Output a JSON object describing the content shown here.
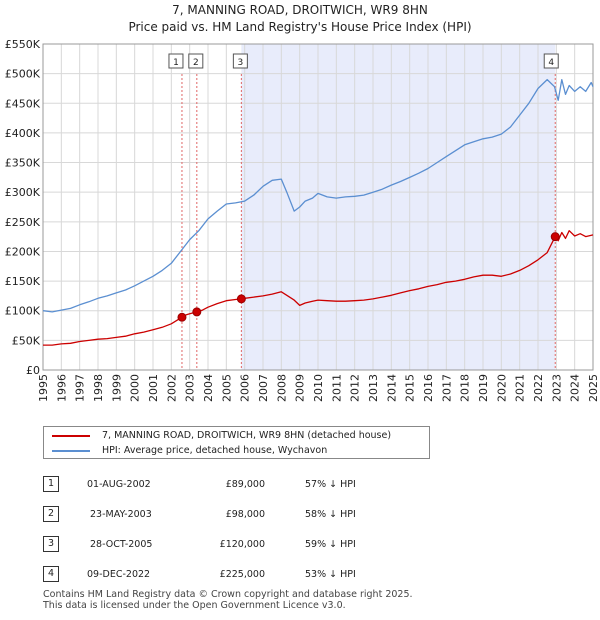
{
  "title_line1": "7, MANNING ROAD, DROITWICH, WR9 8HN",
  "title_line2": "Price paid vs. HM Land Registry's House Price Index (HPI)",
  "chart_data": {
    "type": "line",
    "title": "7, MANNING ROAD, DROITWICH, WR9 8HN — Price paid vs. HM Land Registry's House Price Index (HPI)",
    "xlabel": "",
    "ylabel": "",
    "xlim": [
      1995,
      2025
    ],
    "ylim": [
      0,
      550000
    ],
    "x_ticks": [
      "1995",
      "1996",
      "1997",
      "1998",
      "1999",
      "2000",
      "2001",
      "2002",
      "2003",
      "2004",
      "2005",
      "2006",
      "2007",
      "2008",
      "2009",
      "2010",
      "2011",
      "2012",
      "2013",
      "2014",
      "2015",
      "2016",
      "2017",
      "2018",
      "2019",
      "2020",
      "2021",
      "2022",
      "2023",
      "2024",
      "2025"
    ],
    "y_ticks": [
      {
        "value": 0,
        "label": "£0"
      },
      {
        "value": 50000,
        "label": "£50K"
      },
      {
        "value": 100000,
        "label": "£100K"
      },
      {
        "value": 150000,
        "label": "£150K"
      },
      {
        "value": 200000,
        "label": "£200K"
      },
      {
        "value": 250000,
        "label": "£250K"
      },
      {
        "value": 300000,
        "label": "£300K"
      },
      {
        "value": 350000,
        "label": "£350K"
      },
      {
        "value": 400000,
        "label": "£400K"
      },
      {
        "value": 450000,
        "label": "£450K"
      },
      {
        "value": 500000,
        "label": "£500K"
      },
      {
        "value": 550000,
        "label": "£550K"
      }
    ],
    "grid": true,
    "shaded_region": {
      "from": 2005.82,
      "to": 2022.94,
      "color": "#e8ecfb"
    },
    "series": [
      {
        "name": "7, MANNING ROAD, DROITWICH, WR9 8HN (detached house)",
        "color": "#cc0000",
        "x": [
          1995,
          1995.5,
          1996,
          1996.5,
          1997,
          1997.5,
          1998,
          1998.5,
          1999,
          1999.5,
          2000,
          2000.5,
          2001,
          2001.5,
          2002,
          2002.58,
          2002.8,
          2003,
          2003.39,
          2003.7,
          2004,
          2004.5,
          2005,
          2005.5,
          2005.82,
          2006,
          2006.5,
          2007,
          2007.5,
          2008,
          2008.3,
          2008.7,
          2009,
          2009.3,
          2009.7,
          2010,
          2010.5,
          2011,
          2011.5,
          2012,
          2012.5,
          2013,
          2013.5,
          2014,
          2014.5,
          2015,
          2015.5,
          2016,
          2016.5,
          2017,
          2017.5,
          2018,
          2018.5,
          2019,
          2019.5,
          2020,
          2020.5,
          2021,
          2021.5,
          2022,
          2022.5,
          2022.94,
          2023.1,
          2023.3,
          2023.5,
          2023.7,
          2024,
          2024.3,
          2024.6,
          2025
        ],
        "values": [
          42000,
          42000,
          44000,
          45000,
          48000,
          50000,
          52000,
          53000,
          55000,
          57000,
          61000,
          64000,
          68000,
          72000,
          78000,
          89000,
          93000,
          95000,
          98000,
          101000,
          106000,
          112000,
          117000,
          119000,
          120000,
          121000,
          123000,
          125000,
          128000,
          132000,
          126000,
          118000,
          109000,
          113000,
          116000,
          118000,
          117000,
          116000,
          116000,
          117000,
          118000,
          120000,
          123000,
          126000,
          130000,
          134000,
          137000,
          141000,
          144000,
          148000,
          150000,
          153000,
          157000,
          160000,
          160000,
          158000,
          162000,
          168000,
          176000,
          186000,
          198000,
          225000,
          218000,
          232000,
          222000,
          235000,
          226000,
          230000,
          225000,
          228000
        ]
      },
      {
        "name": "HPI: Average price, detached house, Wychavon",
        "color": "#5b8fd1",
        "x": [
          1995,
          1995.5,
          1996,
          1996.5,
          1997,
          1997.5,
          1998,
          1998.5,
          1999,
          1999.5,
          2000,
          2000.5,
          2001,
          2001.5,
          2002,
          2002.5,
          2003,
          2003.5,
          2004,
          2004.5,
          2005,
          2005.5,
          2006,
          2006.5,
          2007,
          2007.5,
          2008,
          2008.3,
          2008.7,
          2009,
          2009.3,
          2009.7,
          2010,
          2010.5,
          2011,
          2011.5,
          2012,
          2012.5,
          2013,
          2013.5,
          2014,
          2014.5,
          2015,
          2015.5,
          2016,
          2016.5,
          2017,
          2017.5,
          2018,
          2018.5,
          2019,
          2019.5,
          2020,
          2020.5,
          2021,
          2021.5,
          2022,
          2022.5,
          2022.9,
          2023.1,
          2023.3,
          2023.5,
          2023.7,
          2024,
          2024.3,
          2024.6,
          2024.9,
          2025
        ],
        "values": [
          100000,
          98000,
          101000,
          104000,
          110000,
          115000,
          121000,
          125000,
          130000,
          135000,
          142000,
          150000,
          158000,
          168000,
          180000,
          200000,
          220000,
          235000,
          255000,
          268000,
          280000,
          282000,
          285000,
          295000,
          310000,
          320000,
          322000,
          300000,
          268000,
          275000,
          285000,
          290000,
          298000,
          292000,
          290000,
          292000,
          293000,
          295000,
          300000,
          305000,
          312000,
          318000,
          325000,
          332000,
          340000,
          350000,
          360000,
          370000,
          380000,
          385000,
          390000,
          393000,
          398000,
          410000,
          430000,
          450000,
          475000,
          490000,
          478000,
          455000,
          490000,
          465000,
          480000,
          470000,
          478000,
          470000,
          485000,
          478000
        ]
      }
    ],
    "sales": [
      {
        "id": "1",
        "year": 2002.58,
        "price": 89000
      },
      {
        "id": "2",
        "year": 2003.39,
        "price": 98000
      },
      {
        "id": "3",
        "year": 2005.82,
        "price": 120000
      },
      {
        "id": "4",
        "year": 2022.94,
        "price": 225000
      }
    ]
  },
  "legend": [
    {
      "label": "7, MANNING ROAD, DROITWICH, WR9 8HN (detached house)",
      "color": "#cc0000"
    },
    {
      "label": "HPI: Average price, detached house, Wychavon",
      "color": "#5b8fd1"
    }
  ],
  "transactions": [
    {
      "num": "1",
      "date": "01-AUG-2002",
      "price": "£89,000",
      "hpi": "57% ↓ HPI"
    },
    {
      "num": "2",
      "date": "23-MAY-2003",
      "price": "£98,000",
      "hpi": "58% ↓ HPI"
    },
    {
      "num": "3",
      "date": "28-OCT-2005",
      "price": "£120,000",
      "hpi": "59% ↓ HPI"
    },
    {
      "num": "4",
      "date": "09-DEC-2022",
      "price": "£225,000",
      "hpi": "53% ↓ HPI"
    }
  ],
  "footer_line1": "Contains HM Land Registry data © Crown copyright and database right 2025.",
  "footer_line2": "This data is licensed under the Open Government Licence v3.0."
}
